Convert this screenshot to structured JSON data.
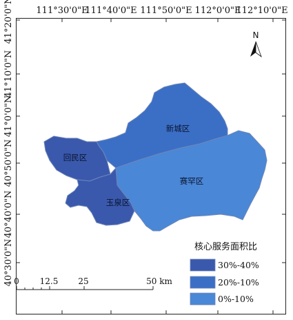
{
  "map": {
    "top_longitude_labels": [
      "111°30'0\"E",
      "111°40'0\"E",
      "111°50'0\"E",
      "112°0'0\"E",
      "112°10'0\"E"
    ],
    "left_latitude_labels": [
      "41°20'0\"N",
      "41°10'0\"N",
      "41°0'0\"N",
      "40°50'0\"N",
      "40°40'0\"N",
      "40°30'0\"N"
    ],
    "north_arrow": {
      "label": "N"
    },
    "districts": [
      {
        "name": "新城区",
        "class": "20%-10%"
      },
      {
        "name": "回民区",
        "class": "30%-40%"
      },
      {
        "name": "玉泉区",
        "class": "30%-40%"
      },
      {
        "name": "赛罕区",
        "class": "0%-10%"
      }
    ]
  },
  "legend": {
    "title": "核心服务面积比",
    "items": [
      {
        "label": "30%-40%",
        "color": "#3a59ad"
      },
      {
        "label": "20%-10%",
        "color": "#3b6fc6"
      },
      {
        "label": "0%-10%",
        "color": "#4a87d6"
      }
    ]
  },
  "scale_bar": {
    "labels": [
      "0",
      "12.5",
      "25",
      "50 km"
    ]
  },
  "colors": {
    "boundary": "#6f86b8",
    "frame": "#222222"
  }
}
